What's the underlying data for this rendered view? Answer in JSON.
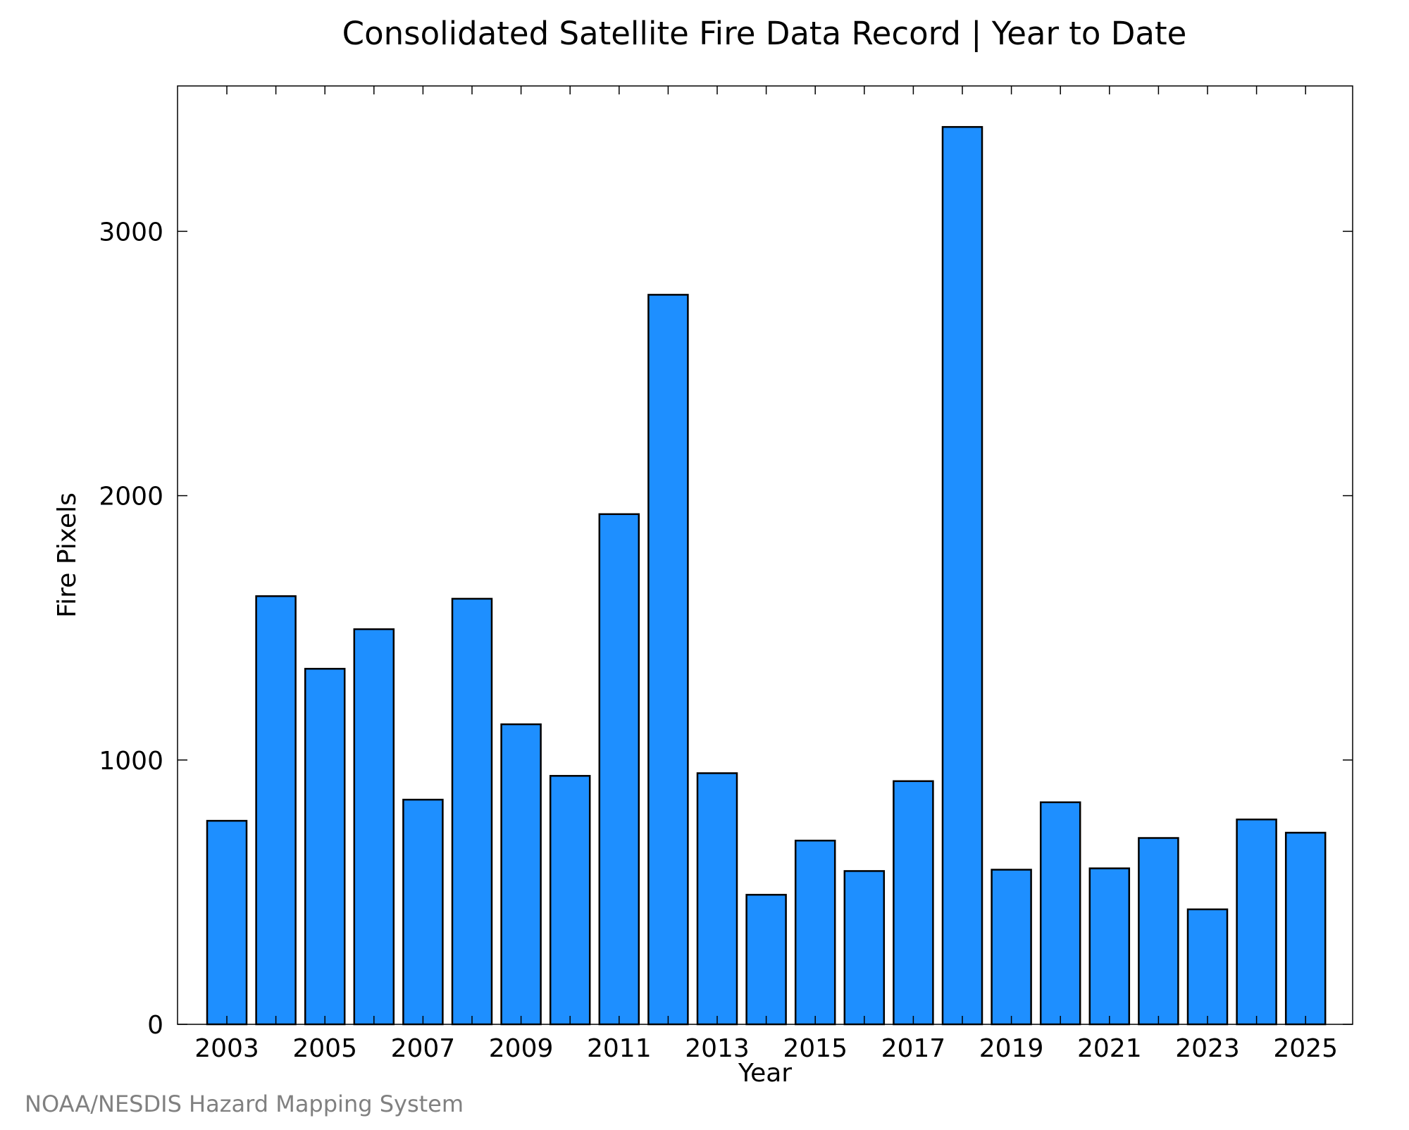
{
  "chart_data": {
    "type": "bar",
    "title": "Consolidated Satellite Fire Data Record | Year to Date",
    "xlabel": "Year",
    "ylabel": "Fire Pixels",
    "categories": [
      "2003",
      "2004",
      "2005",
      "2006",
      "2007",
      "2008",
      "2009",
      "2010",
      "2011",
      "2012",
      "2013",
      "2014",
      "2015",
      "2016",
      "2017",
      "2018",
      "2019",
      "2020",
      "2021",
      "2022",
      "2023",
      "2024",
      "2025"
    ],
    "values": [
      770,
      1620,
      1345,
      1495,
      850,
      1610,
      1135,
      940,
      1930,
      2760,
      950,
      490,
      695,
      580,
      920,
      3395,
      585,
      840,
      590,
      705,
      435,
      775,
      725
    ],
    "x_tick_labels": [
      "2003",
      "2005",
      "2007",
      "2009",
      "2011",
      "2013",
      "2015",
      "2017",
      "2019",
      "2021",
      "2023",
      "2025"
    ],
    "y_tick_values": [
      0,
      1000,
      2000,
      3000
    ],
    "ylim": [
      0,
      3550
    ],
    "grid": false,
    "legend": false,
    "colors": {
      "bar_fill": "#1e8fff",
      "bar_stroke": "#000000",
      "credit_text": "#808080"
    }
  },
  "credit": "NOAA/NESDIS Hazard Mapping System"
}
